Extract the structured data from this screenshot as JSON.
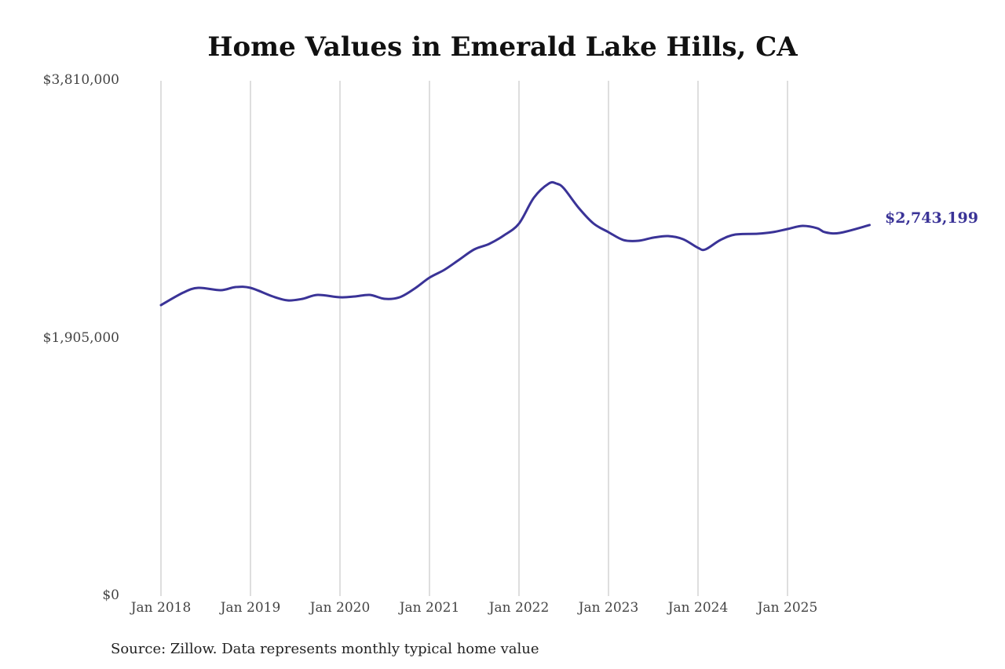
{
  "chart_data": {
    "type": "line",
    "title": "Home Values in Emerald Lake Hills, CA",
    "xlabel": "",
    "ylabel": "",
    "ylim": [
      0,
      3810000
    ],
    "y_ticks": [
      "$0",
      "$1,905,000",
      "$3,810,000"
    ],
    "y_tick_values": [
      0,
      1905000,
      3810000
    ],
    "x_ticks": [
      "Jan 2018",
      "Jan 2019",
      "Jan 2020",
      "Jan 2021",
      "Jan 2022",
      "Jan 2023",
      "Jan 2024",
      "Jan 2025"
    ],
    "x_tick_dates": [
      "2018-01",
      "2019-01",
      "2020-01",
      "2021-01",
      "2022-01",
      "2023-01",
      "2024-01",
      "2025-01"
    ],
    "grid": "vertical lines at x ticks",
    "color": "#3a3397",
    "end_label": "$2,743,199",
    "x": [
      "2018-01",
      "2018-04",
      "2018-06",
      "2018-09",
      "2018-11",
      "2019-01",
      "2019-04",
      "2019-06",
      "2019-08",
      "2019-10",
      "2020-01",
      "2020-03",
      "2020-05",
      "2020-07",
      "2020-09",
      "2020-11",
      "2021-01",
      "2021-03",
      "2021-05",
      "2021-07",
      "2021-09",
      "2021-11",
      "2022-01",
      "2022-03",
      "2022-05",
      "2022-06",
      "2022-07",
      "2022-09",
      "2022-11",
      "2023-01",
      "2023-03",
      "2023-05",
      "2023-07",
      "2023-09",
      "2023-11",
      "2024-01",
      "2024-02",
      "2024-04",
      "2024-06",
      "2024-09",
      "2024-11",
      "2025-01",
      "2025-03",
      "2025-05",
      "2025-06",
      "2025-08",
      "2025-12"
    ],
    "values": [
      2151400,
      2244200,
      2279000,
      2261600,
      2284800,
      2279000,
      2215200,
      2186200,
      2197800,
      2226800,
      2209400,
      2215200,
      2226800,
      2197800,
      2209400,
      2273200,
      2354400,
      2412400,
      2487800,
      2563200,
      2603800,
      2667500,
      2754500,
      2945900,
      3050300,
      3050300,
      3015500,
      2870500,
      2754500,
      2690700,
      2632700,
      2626900,
      2650100,
      2661700,
      2638500,
      2574700,
      2563200,
      2632700,
      2673300,
      2679100,
      2690700,
      2713900,
      2737100,
      2719700,
      2690700,
      2684900,
      2743199
    ]
  },
  "source": "Source: Zillow. Data represents monthly typical home value"
}
